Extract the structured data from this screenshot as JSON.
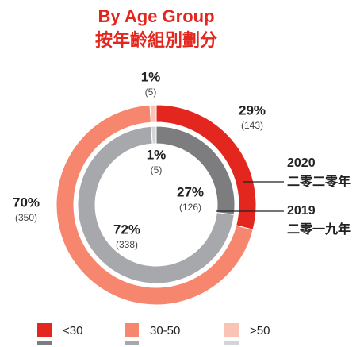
{
  "chart_data": {
    "type": "donut",
    "title": "By Age Group",
    "subtitle": "按年齡組別劃分",
    "categories": [
      "<30",
      "30-50",
      ">50"
    ],
    "series": [
      {
        "name": "2020",
        "name_zh": "二零二零年",
        "colors": [
          "#e3261e",
          "#f7866e",
          "#f9c3b5"
        ],
        "values": [
          29,
          70,
          1
        ],
        "value_labels": [
          "29%",
          "70%",
          "1%"
        ],
        "counts": [
          143,
          350,
          5
        ],
        "count_labels": [
          "(143)",
          "(350)",
          "(5)"
        ]
      },
      {
        "name": "2019",
        "name_zh": "二零一九年",
        "colors": [
          "#7d7d7f",
          "#a7a8ab",
          "#d3d4d5"
        ],
        "values": [
          27,
          72,
          1
        ],
        "value_labels": [
          "27%",
          "72%",
          "1%"
        ],
        "counts": [
          126,
          338,
          5
        ],
        "count_labels": [
          "(126)",
          "(338)",
          "(5)"
        ]
      }
    ]
  }
}
